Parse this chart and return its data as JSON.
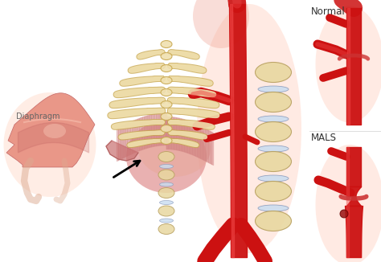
{
  "background_color": "#ffffff",
  "label_diaphragm": "Diaphragm",
  "label_normal": "Normal",
  "label_mals": "MALS",
  "label_color": "#666666",
  "figsize": [
    4.74,
    3.26
  ],
  "dpi": 100,
  "aorta_color": "#cc1111",
  "aorta_highlight": "#ee4444",
  "aorta_shadow": "#991111",
  "diaphragm_color": "#e89080",
  "diaphragm_dark": "#c06060",
  "diaphragm_light": "#f5b0a0",
  "rib_color": "#f0e0b0",
  "rib_edge": "#c8a850",
  "rib_shadow": "#d4b870",
  "muscle_color": "#d88080",
  "muscle_light": "#e8a090",
  "vertebra_color": "#e8d8a0",
  "vertebra_edge": "#b8a060",
  "disc_color": "#c8ddf0",
  "disc_edge": "#8899bb",
  "pink_glow": "#ffddcc",
  "arrow_color": "#111111"
}
